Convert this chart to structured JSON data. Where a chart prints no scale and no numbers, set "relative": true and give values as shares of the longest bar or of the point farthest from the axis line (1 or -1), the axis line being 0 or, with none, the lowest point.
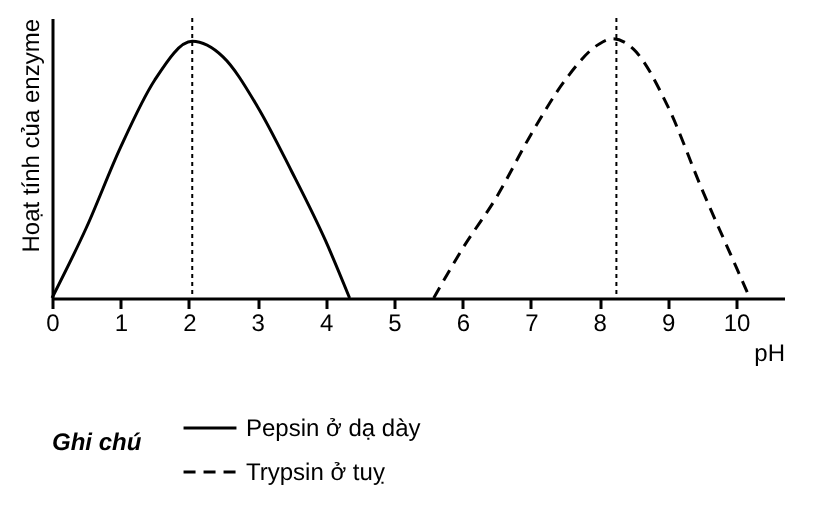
{
  "chart_data": {
    "type": "line",
    "ylabel": "Hoạt tính của enzyme",
    "xlabel": "pH",
    "legend_title": "Ghi chú",
    "relative": true,
    "xlim": [
      0,
      10.7
    ],
    "xticks": [
      0,
      1,
      2,
      3,
      4,
      5,
      6,
      7,
      8,
      9,
      10
    ],
    "grid": false,
    "legend": "bottom",
    "marker": "none",
    "series": [
      {
        "name": "Pepsin ở dạ dày",
        "color": "#000000",
        "line_style": "solid",
        "x": [
          0,
          0.5,
          1,
          1.5,
          2.05,
          2.5,
          3,
          3.5,
          4,
          4.35
        ],
        "values": [
          0,
          0.27,
          0.58,
          0.84,
          0.99,
          0.93,
          0.74,
          0.49,
          0.22,
          0
        ]
      },
      {
        "name": "Trypsin ở tuỵ",
        "color": "#000000",
        "line_style": "dashed",
        "x": [
          5.58,
          6,
          6.5,
          7,
          7.5,
          8,
          8.2,
          8.5,
          9,
          9.5,
          10,
          10.2
        ],
        "values": [
          0,
          0.19,
          0.39,
          0.63,
          0.84,
          0.98,
          1,
          0.96,
          0.74,
          0.42,
          0.12,
          0
        ]
      }
    ],
    "ref_lines": [
      {
        "axis": "x",
        "value": 2.05,
        "color": "#000000",
        "line_style": "dotted"
      },
      {
        "axis": "x",
        "value": 8.25,
        "color": "#000000",
        "line_style": "dotted"
      }
    ]
  }
}
